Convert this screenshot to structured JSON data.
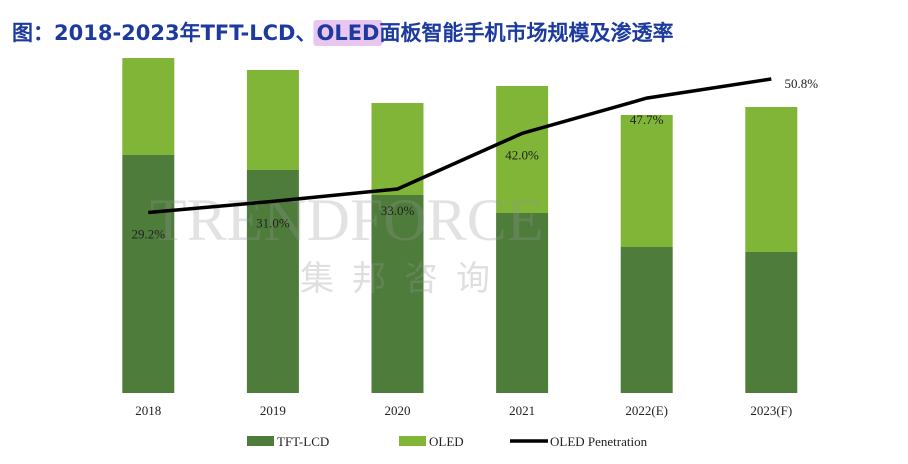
{
  "chart_data": {
    "type": "bar",
    "title_parts": [
      "图：2018-2023年TFT-LCD、",
      "OLED",
      "面板智能手机市场规模及渗透率"
    ],
    "watermark": [
      "TRENDFORCE",
      "集邦咨询"
    ],
    "categories": [
      "2018",
      "2019",
      "2020",
      "2021",
      "2022(E)",
      "2023(F)"
    ],
    "stacked": true,
    "ylim": [
      0,
      340
    ],
    "y2lim": [
      0,
      55
    ],
    "series": [
      {
        "name": "TFT-LCD",
        "color": "#4e7d3b",
        "type": "bar",
        "values": [
          238,
          223,
          198,
          180,
          146,
          141
        ]
      },
      {
        "name": "OLED",
        "color": "#80b537",
        "type": "bar",
        "values": [
          97,
          100,
          92,
          127,
          132,
          145
        ]
      },
      {
        "name": "OLED Penetration",
        "color": "#000000",
        "type": "line",
        "axis": "y2",
        "values": [
          29.2,
          31.0,
          33.0,
          42.0,
          47.7,
          50.8
        ],
        "value_labels": [
          "29.2%",
          "31.0%",
          "33.0%",
          "42.0%",
          "47.7%",
          "50.8%"
        ]
      }
    ]
  }
}
